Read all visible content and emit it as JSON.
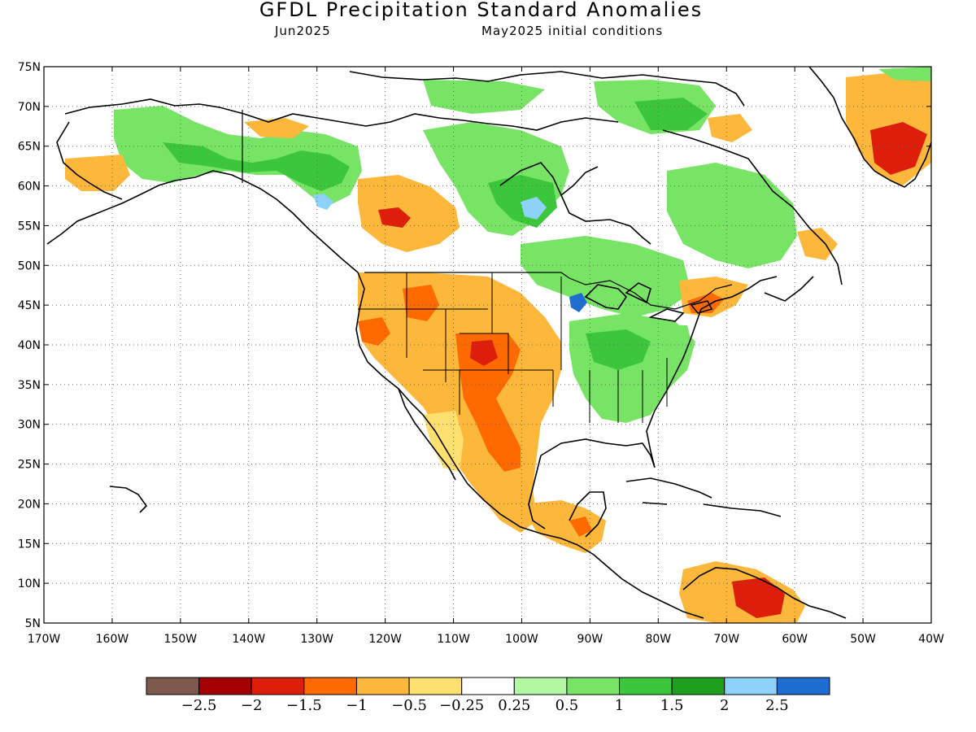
{
  "title": "GFDL Precipitation Standard Anomalies",
  "subtitle_left": "Jun2025",
  "subtitle_right": "May2025 initial conditions",
  "map": {
    "lat_labels": [
      "75N",
      "70N",
      "65N",
      "60N",
      "55N",
      "50N",
      "45N",
      "40N",
      "35N",
      "30N",
      "25N",
      "20N",
      "15N",
      "10N",
      "5N"
    ],
    "lon_labels": [
      "170W",
      "160W",
      "150W",
      "140W",
      "130W",
      "120W",
      "110W",
      "100W",
      "90W",
      "80W",
      "70W",
      "60W",
      "50W",
      "40W"
    ],
    "lat_range": [
      5,
      75
    ],
    "lon_range": [
      -170,
      -40
    ],
    "grid": "dotted"
  },
  "colorbar": {
    "colors": [
      "#7d5a4c",
      "#a50000",
      "#dc1e0a",
      "#ff6a00",
      "#fdb73b",
      "#fee070",
      "#ffffff",
      "#b2f7a2",
      "#78e466",
      "#3cc63c",
      "#1ea01e",
      "#8cd2fa",
      "#1e6ed2"
    ],
    "labels": [
      "−2.5",
      "−2",
      "−1.5",
      "−1",
      "−0.5",
      "−0.25",
      "0.25",
      "0.5",
      "1",
      "1.5",
      "2",
      "2.5"
    ]
  },
  "anomaly_colors": {
    "dry_strong": "#dc1e0a",
    "dry_mod": "#ff6a00",
    "dry": "#fdb73b",
    "dry_weak": "#fee070",
    "wet_weak": "#b2f7a2",
    "wet": "#78e466",
    "wet_mod": "#3cc63c",
    "wet_strong": "#1ea01e",
    "very_wet": "#8cd2fa",
    "extreme_wet": "#1e6ed2"
  }
}
